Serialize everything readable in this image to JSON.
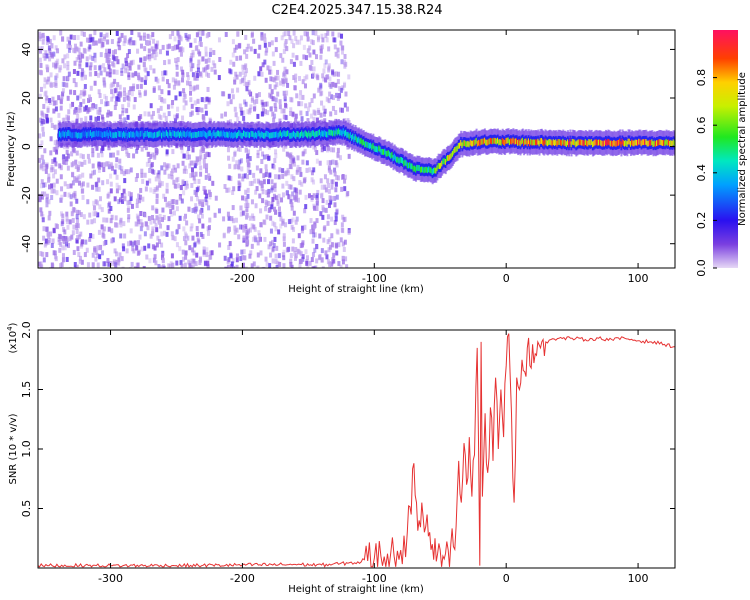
{
  "title": "C2E4.2025.347.15.38.R24",
  "colors": {
    "snr_line": "#e63232",
    "frame": "#000000"
  },
  "chart_data": [
    {
      "type": "heatmap",
      "xlabel": "Height of straight line (km)",
      "ylabel": "Frequency (Hz)",
      "xlim": [
        -355,
        128
      ],
      "ylim": [
        -50,
        48
      ],
      "xticks": [
        -300,
        -200,
        -100,
        0,
        100
      ],
      "xtick_labels": [
        "-300",
        "-200",
        "-100",
        "0",
        "100"
      ],
      "yticks": [
        -40,
        -20,
        0,
        20,
        40
      ],
      "ytick_labels": [
        "-40",
        "-20",
        "0",
        "20",
        "40"
      ],
      "colorbar": {
        "label": "Normalized spectral amplitude",
        "range": [
          0,
          1
        ],
        "ticks": [
          0.0,
          0.2,
          0.4,
          0.6,
          0.8
        ],
        "tick_labels": [
          "0.0",
          "0.2",
          "0.4",
          "0.6",
          "0.8"
        ]
      },
      "ridge": {
        "description_of_trend": "frequency centroid vs height",
        "x": [
          -340,
          -300,
          -250,
          -200,
          -150,
          -125,
          -110,
          -90,
          -70,
          -55,
          -45,
          -35,
          -20,
          0,
          50,
          100,
          128
        ],
        "y": [
          5,
          5,
          5,
          5,
          5,
          6,
          2,
          -3,
          -9,
          -10,
          -5,
          1,
          2,
          2,
          1.5,
          1.5,
          1.5
        ],
        "amplitude": [
          0.35,
          0.35,
          0.4,
          0.4,
          0.45,
          0.45,
          0.5,
          0.5,
          0.5,
          0.6,
          0.7,
          0.75,
          0.8,
          0.8,
          0.85,
          0.85,
          0.8
        ]
      },
      "noise_extent": [
        -355,
        -120
      ]
    },
    {
      "type": "line",
      "xlabel": "Height of straight line (km)",
      "ylabel": "SNR (10 * v/v)",
      "multiplier": "(x10",
      "multiplier_exp": "4",
      "multiplier_close": ")",
      "xlim": [
        -355,
        128
      ],
      "ylim": [
        0,
        2.0
      ],
      "xticks": [
        -300,
        -200,
        -100,
        0,
        100
      ],
      "xtick_labels": [
        "-300",
        "-200",
        "-100",
        "0",
        "100"
      ],
      "yticks": [
        0.5,
        1.0,
        1.5,
        2.0
      ],
      "ytick_labels": [
        "0.5",
        "1.0",
        "1.5",
        "2.0"
      ],
      "series": [
        {
          "name": "SNR",
          "x": [
            -355,
            -300,
            -250,
            -200,
            -160,
            -140,
            -120,
            -110,
            -105,
            -100,
            -95,
            -90,
            -85,
            -80,
            -75,
            -72,
            -70,
            -68,
            -66,
            -64,
            -62,
            -60,
            -58,
            -56,
            -54,
            -52,
            -50,
            -48,
            -46,
            -44,
            -42,
            -40,
            -38,
            -36,
            -34,
            -32,
            -30,
            -28,
            -26,
            -24,
            -22,
            -20,
            -19,
            -18,
            -16,
            -14,
            -12,
            -10,
            -8,
            -6,
            -4,
            -2,
            0,
            2,
            4,
            6,
            8,
            10,
            12,
            14,
            16,
            18,
            20,
            22,
            24,
            26,
            28,
            30,
            34,
            40,
            50,
            60,
            70,
            80,
            90,
            100,
            110,
            120,
            128
          ],
          "y": [
            0.02,
            0.02,
            0.02,
            0.025,
            0.03,
            0.025,
            0.04,
            0.05,
            0.06,
            0.08,
            0.1,
            0.12,
            0.1,
            0.15,
            0.3,
            0.45,
            0.88,
            0.55,
            0.4,
            0.55,
            0.3,
            0.45,
            0.3,
            0.2,
            0.25,
            0.12,
            0.15,
            0.1,
            0.12,
            0.15,
            0.2,
            0.18,
            0.35,
            0.9,
            0.55,
            1.05,
            0.7,
            1.1,
            0.6,
            0.95,
            1.85,
            0.02,
            1.9,
            0.6,
            1.3,
            0.8,
            1.35,
            0.9,
            1.6,
            1.0,
            1.5,
            1.1,
            1.7,
            1.97,
            1.3,
            0.55,
            1.6,
            1.5,
            1.75,
            1.65,
            1.85,
            1.7,
            1.88,
            1.8,
            1.9,
            1.85,
            1.92,
            1.9,
            1.92,
            1.93,
            1.93,
            1.92,
            1.93,
            1.92,
            1.93,
            1.91,
            1.9,
            1.88,
            1.86
          ]
        }
      ]
    }
  ]
}
